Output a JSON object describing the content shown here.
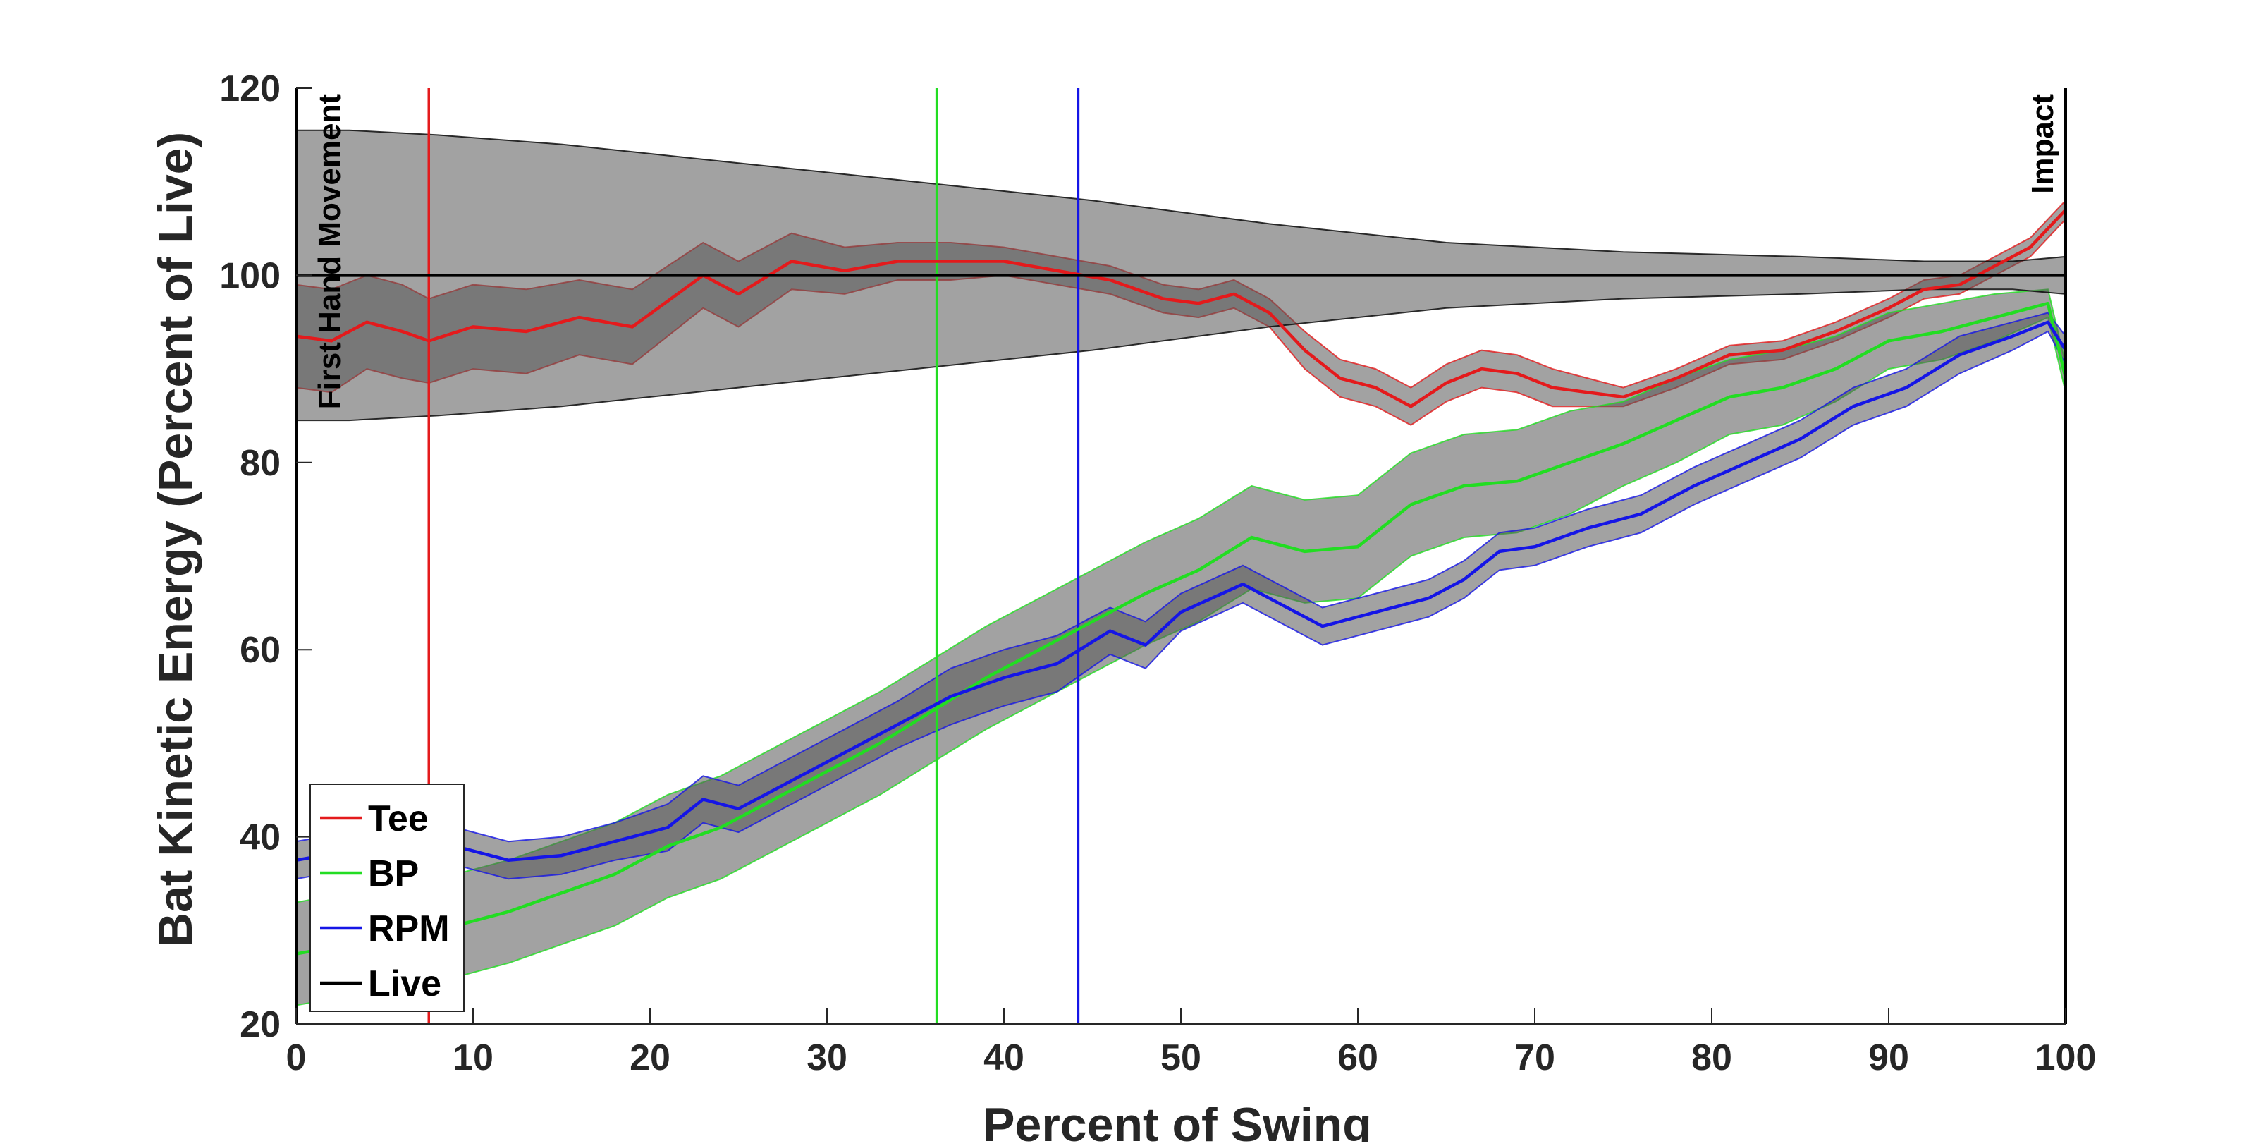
{
  "chart_data": {
    "type": "line",
    "xlabel": "Percent of Swing",
    "ylabel": "Bat Kinetic Energy (Percent of Live)",
    "xlim": [
      0,
      100
    ],
    "ylim": [
      20,
      120
    ],
    "xticks": [
      0,
      10,
      20,
      30,
      40,
      50,
      60,
      70,
      80,
      90,
      100
    ],
    "yticks": [
      20,
      40,
      60,
      80,
      100,
      120
    ],
    "grid": false,
    "legend_position": "bottom-left",
    "annotations": [
      {
        "text": "First Hand Movement",
        "x": 0
      },
      {
        "text": "Impact",
        "x": 100
      }
    ],
    "vertical_markers": [
      {
        "series": "Tee",
        "x": 7.5
      },
      {
        "series": "BP",
        "x": 36.2
      },
      {
        "series": "RPM",
        "x": 44.2
      }
    ],
    "series": [
      {
        "name": "Tee",
        "color": "#e41a1c",
        "x": [
          0,
          2,
          4,
          6,
          7.5,
          10,
          13,
          16,
          19,
          23,
          25,
          28,
          31,
          34,
          37,
          40,
          43,
          46,
          49,
          51,
          53,
          55,
          57,
          59,
          61,
          63,
          65,
          67,
          69,
          71,
          73,
          75,
          78,
          81,
          84,
          87,
          90,
          92,
          94,
          96,
          98,
          100
        ],
        "y": [
          93.5,
          93,
          95,
          94,
          93,
          94.5,
          94,
          95.5,
          94.5,
          100,
          98,
          101.5,
          100.5,
          101.5,
          101.5,
          101.5,
          100.5,
          99.5,
          97.5,
          97,
          98,
          96,
          92,
          89,
          88,
          86,
          88.5,
          90,
          89.5,
          88,
          87.5,
          87,
          89,
          91.5,
          92,
          94,
          96.5,
          98.5,
          99,
          101,
          103,
          107
        ],
        "upper": [
          99,
          98.5,
          100,
          99,
          97.5,
          99,
          98.5,
          99.5,
          98.5,
          103.5,
          101.5,
          104.5,
          103,
          103.5,
          103.5,
          103,
          102,
          101,
          99,
          98.5,
          99.5,
          97.5,
          94,
          91,
          90,
          88,
          90.5,
          92,
          91.5,
          90,
          89,
          88,
          90,
          92.5,
          93,
          95,
          97.5,
          99.5,
          100,
          102,
          104,
          108
        ],
        "lower": [
          88,
          87.5,
          90,
          89,
          88.5,
          90,
          89.5,
          91.5,
          90.5,
          96.5,
          94.5,
          98.5,
          98,
          99.5,
          99.5,
          100,
          99,
          98,
          96,
          95.5,
          96.5,
          94.5,
          90,
          87,
          86,
          84,
          86.5,
          88,
          87.5,
          86,
          86,
          86,
          88,
          90.5,
          91,
          93,
          95.5,
          97.5,
          98,
          100,
          102,
          106
        ]
      },
      {
        "name": "BP",
        "color": "#22dd22",
        "x": [
          0,
          3,
          6,
          9,
          12,
          15,
          18,
          21,
          24,
          27,
          30,
          33,
          36,
          39,
          42,
          45,
          48,
          51,
          54,
          57,
          60,
          63,
          66,
          69,
          72,
          75,
          78,
          81,
          84,
          87,
          90,
          93,
          96,
          99,
          100
        ],
        "y": [
          27.5,
          28.5,
          29.5,
          30.5,
          32,
          34,
          36,
          39,
          41,
          44,
          47,
          50,
          53.5,
          57,
          60,
          63,
          66,
          68.5,
          72,
          70.5,
          71,
          75.5,
          77.5,
          78,
          80,
          82,
          84.5,
          87,
          88,
          90,
          93,
          94,
          95.5,
          97,
          89
        ],
        "upper": [
          33,
          34,
          35,
          36,
          37.5,
          39.5,
          41.5,
          44.5,
          46.5,
          49.5,
          52.5,
          55.5,
          59,
          62.5,
          65.5,
          68.5,
          71.5,
          74,
          77.5,
          76,
          76.5,
          81,
          83,
          83.5,
          85.5,
          86.5,
          89,
          91,
          92,
          93.5,
          96,
          97,
          98,
          98.5,
          90.5
        ],
        "lower": [
          22,
          23,
          24,
          25,
          26.5,
          28.5,
          30.5,
          33.5,
          35.5,
          38.5,
          41.5,
          44.5,
          48,
          51.5,
          54.5,
          57.5,
          60.5,
          63,
          66.5,
          65,
          65.5,
          70,
          72,
          72.5,
          74.5,
          77.5,
          80,
          83,
          84,
          86.5,
          90,
          91,
          93,
          95.5,
          87.5
        ]
      },
      {
        "name": "RPM",
        "color": "#1515e6",
        "x": [
          0,
          3,
          6,
          9,
          12,
          15,
          18,
          21,
          23,
          25,
          28,
          31,
          34,
          37,
          40,
          43,
          46,
          48,
          50,
          53.5,
          56,
          58,
          61,
          64,
          66,
          68,
          70,
          73,
          76,
          79,
          82,
          85,
          88,
          91,
          94,
          97,
          99,
          100
        ],
        "y": [
          37.5,
          38.5,
          38,
          39,
          37.5,
          38,
          39.5,
          41,
          44,
          43,
          46,
          49,
          52,
          55,
          57,
          58.5,
          62,
          60.5,
          64,
          67,
          64.5,
          62.5,
          64,
          65.5,
          67.5,
          70.5,
          71,
          73,
          74.5,
          77.5,
          80,
          82.5,
          86,
          88,
          91.5,
          93.5,
          95,
          92
        ],
        "upper": [
          39.5,
          40.5,
          40,
          41,
          39.5,
          40,
          41.5,
          43.5,
          46.5,
          45.5,
          48.5,
          51.5,
          54.5,
          58,
          60,
          61.5,
          64.5,
          63,
          66,
          69,
          66.5,
          64.5,
          66,
          67.5,
          69.5,
          72.5,
          73,
          75,
          76.5,
          79.5,
          82,
          84.5,
          88,
          90,
          93.5,
          95,
          96,
          93.5
        ],
        "lower": [
          35.5,
          36.5,
          36,
          37,
          35.5,
          36,
          37.5,
          38.5,
          41.5,
          40.5,
          43.5,
          46.5,
          49.5,
          52,
          54,
          55.5,
          59.5,
          58,
          62,
          65,
          62.5,
          60.5,
          62,
          63.5,
          65.5,
          68.5,
          69,
          71,
          72.5,
          75.5,
          78,
          80.5,
          84,
          86,
          89.5,
          92,
          94,
          90.5
        ]
      },
      {
        "name": "Live",
        "color": "#000000",
        "x": [
          0,
          3,
          8,
          15,
          25,
          35,
          45,
          55,
          60,
          65,
          75,
          85,
          92,
          97,
          100
        ],
        "y": [
          100,
          100,
          100,
          100,
          100,
          100,
          100,
          100,
          100,
          100,
          100,
          100,
          100,
          100,
          100
        ],
        "upper": [
          115.5,
          115.5,
          115,
          114,
          112,
          110,
          108,
          105.5,
          104.5,
          103.5,
          102.5,
          102,
          101.5,
          101.5,
          102
        ],
        "lower": [
          84.5,
          84.5,
          85,
          86,
          88,
          90,
          92,
          94.5,
          95.5,
          96.5,
          97.5,
          98,
          98.5,
          98.5,
          98
        ]
      }
    ]
  }
}
